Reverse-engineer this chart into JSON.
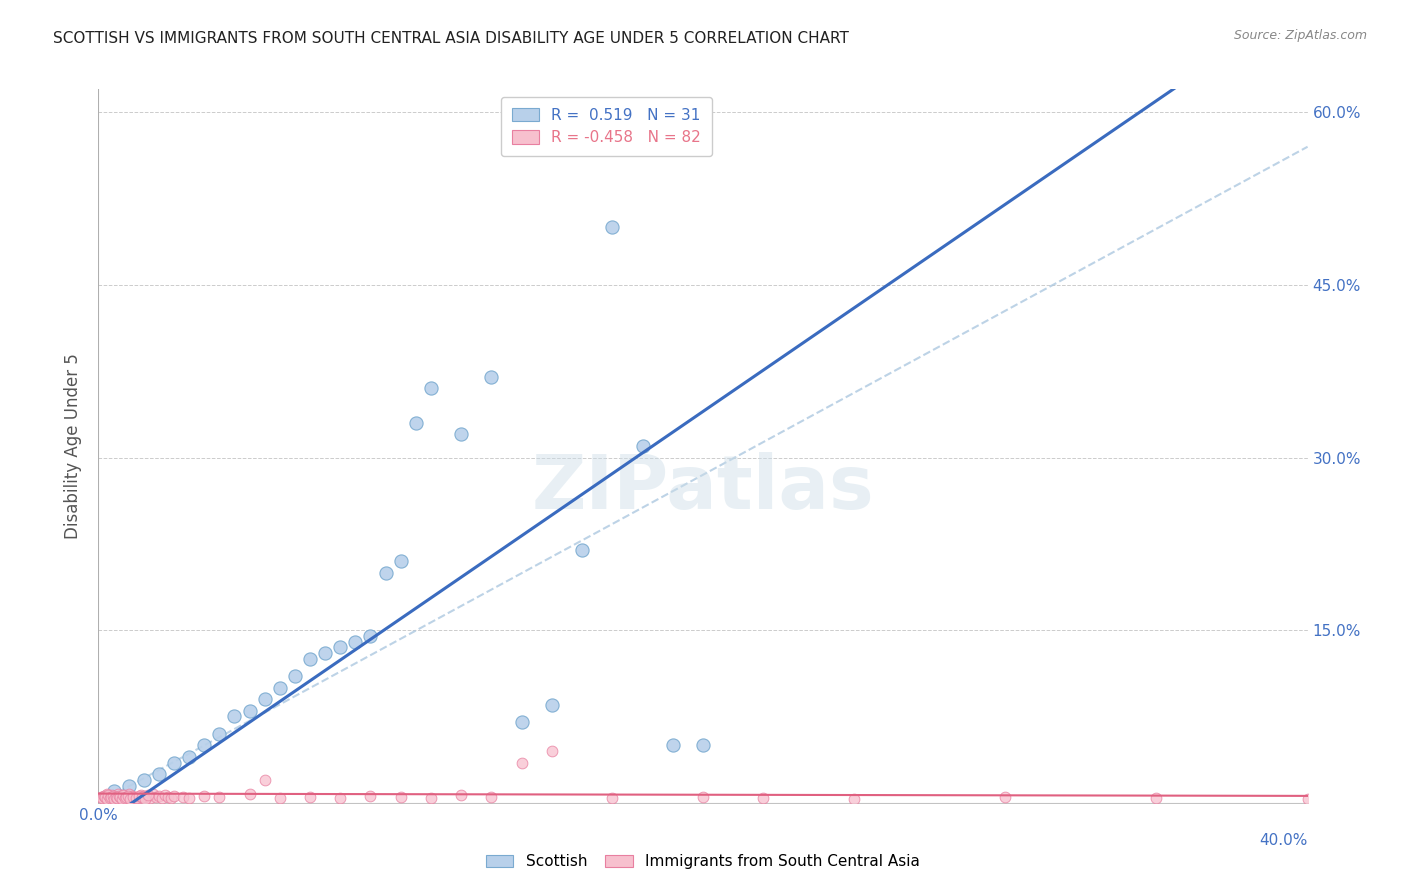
{
  "title": "SCOTTISH VS IMMIGRANTS FROM SOUTH CENTRAL ASIA DISABILITY AGE UNDER 5 CORRELATION CHART",
  "source": "Source: ZipAtlas.com",
  "ylabel": "Disability Age Under 5",
  "watermark": "ZIPatlas",
  "xlim": [
    0.0,
    40.0
  ],
  "ylim": [
    0.0,
    62.0
  ],
  "y_display_max": 60.0,
  "scottish_R": 0.519,
  "scottish_N": 31,
  "immigrants_R": -0.458,
  "immigrants_N": 82,
  "scottish_color": "#b8d0ea",
  "scottish_edge_color": "#7aaad0",
  "scottish_line_color": "#3a6bbf",
  "immigrants_color": "#f7c0ce",
  "immigrants_edge_color": "#e87fa0",
  "immigrants_line_color": "#e06080",
  "dashed_line_color": "#adc8e0",
  "background_color": "#ffffff",
  "grid_color": "#cccccc",
  "title_color": "#222222",
  "axis_label_color": "#4472c4",
  "legend_color_scottish": "#4472c4",
  "legend_color_immigrants": "#e8758a",
  "scottish_x": [
    0.5,
    1.0,
    1.5,
    2.0,
    2.5,
    3.0,
    3.5,
    4.0,
    4.5,
    5.0,
    5.5,
    6.0,
    6.5,
    7.0,
    7.5,
    8.0,
    8.5,
    9.0,
    9.5,
    10.0,
    10.5,
    11.0,
    12.0,
    13.0,
    14.0,
    15.0,
    16.0,
    17.0,
    18.0,
    19.0,
    20.0
  ],
  "scottish_y": [
    1.0,
    1.5,
    2.0,
    2.5,
    3.5,
    4.0,
    5.0,
    6.0,
    7.5,
    8.0,
    9.0,
    10.0,
    11.0,
    12.5,
    13.0,
    13.5,
    14.0,
    14.5,
    20.0,
    21.0,
    33.0,
    36.0,
    32.0,
    37.0,
    7.0,
    8.5,
    22.0,
    50.0,
    31.0,
    5.0,
    5.0
  ],
  "immigrants_x": [
    0.1,
    0.15,
    0.2,
    0.25,
    0.3,
    0.35,
    0.4,
    0.45,
    0.5,
    0.55,
    0.6,
    0.65,
    0.7,
    0.75,
    0.8,
    0.85,
    0.9,
    0.95,
    1.0,
    1.1,
    1.2,
    1.3,
    1.4,
    1.5,
    1.6,
    1.7,
    1.8,
    1.9,
    2.0,
    2.1,
    2.2,
    2.3,
    2.4,
    2.5,
    2.8,
    3.0,
    3.5,
    4.0,
    5.0,
    5.5,
    6.0,
    7.0,
    8.0,
    9.0,
    10.0,
    11.0,
    12.0,
    13.0,
    14.0,
    15.0,
    17.0,
    20.0,
    22.0,
    25.0,
    30.0,
    35.0,
    40.0,
    0.12,
    0.18,
    0.22,
    0.28,
    0.32,
    0.38,
    0.42,
    0.48,
    0.52,
    0.58,
    0.62,
    0.68,
    0.72,
    0.78,
    0.82,
    0.88,
    0.92,
    0.98,
    1.05,
    1.15,
    1.25,
    1.35,
    1.45,
    1.55,
    1.65
  ],
  "immigrants_y": [
    0.5,
    0.4,
    0.6,
    0.3,
    0.8,
    0.5,
    0.4,
    0.7,
    0.6,
    0.5,
    0.4,
    0.8,
    0.5,
    0.6,
    0.4,
    0.7,
    0.5,
    0.3,
    0.8,
    0.6,
    0.5,
    0.4,
    0.7,
    0.6,
    0.5,
    0.4,
    0.8,
    0.5,
    0.6,
    0.4,
    0.7,
    0.5,
    0.4,
    0.6,
    0.5,
    0.4,
    0.6,
    0.5,
    0.8,
    2.0,
    0.4,
    0.5,
    0.4,
    0.6,
    0.5,
    0.4,
    0.7,
    0.5,
    3.5,
    4.5,
    0.4,
    0.5,
    0.4,
    0.3,
    0.5,
    0.4,
    0.3,
    0.4,
    0.6,
    0.5,
    0.3,
    0.7,
    0.4,
    0.5,
    0.6,
    0.3,
    0.5,
    0.4,
    0.6,
    0.5,
    0.3,
    0.7,
    0.4,
    0.5,
    0.6,
    0.3,
    0.5,
    0.4,
    0.6,
    0.5,
    0.3,
    0.7
  ]
}
